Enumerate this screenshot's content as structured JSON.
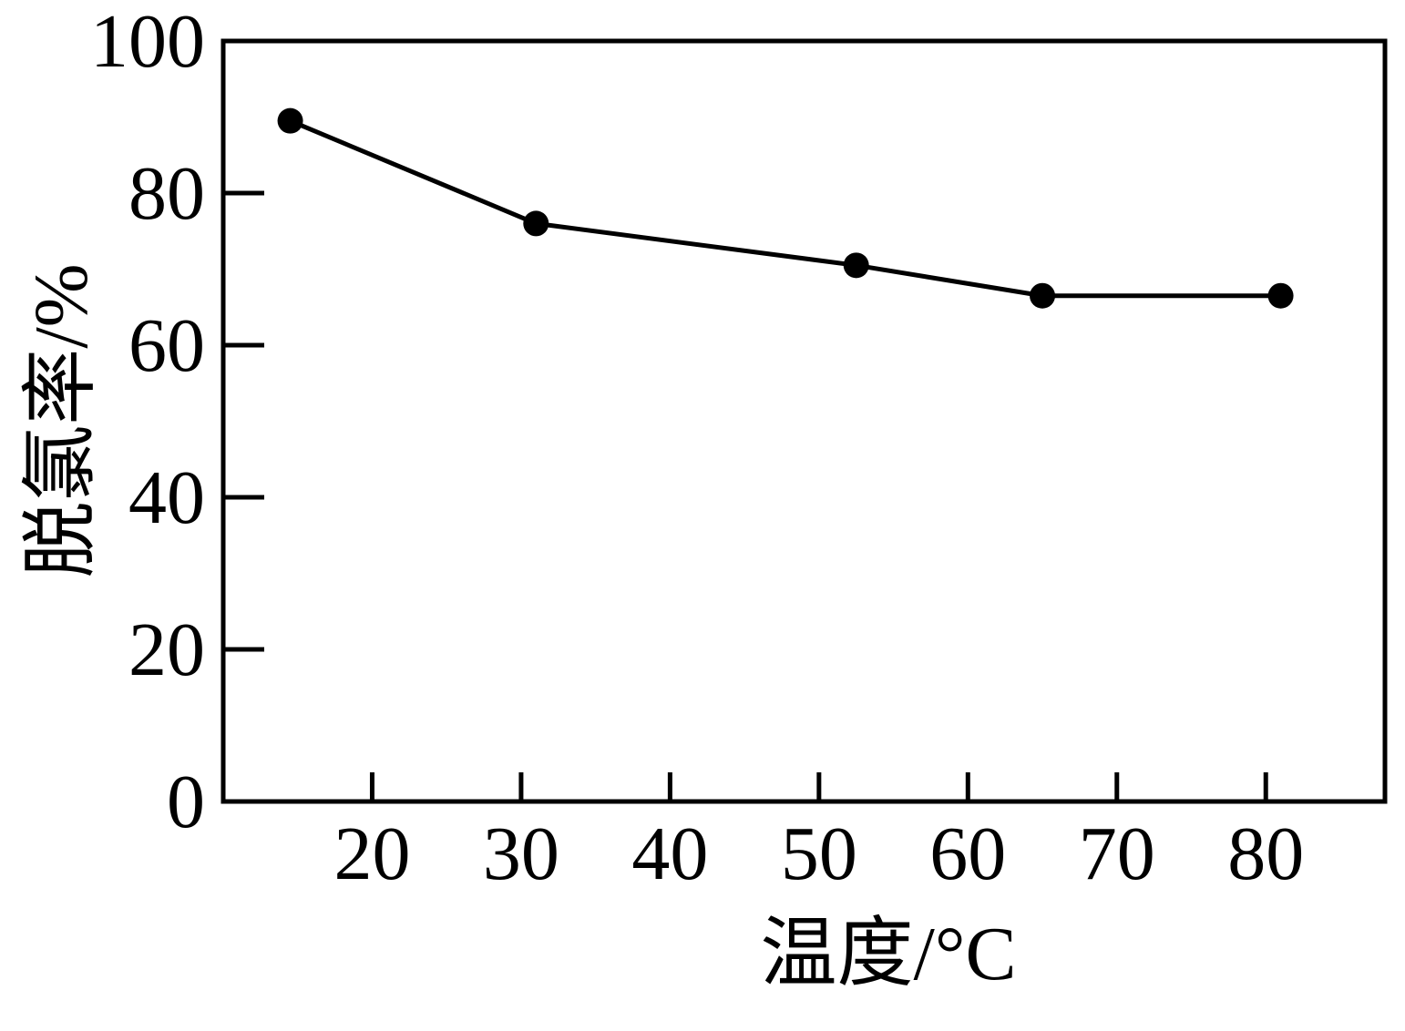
{
  "chart_data": {
    "type": "line",
    "x_label": "温度/°C",
    "y_label": "脱氯率/%",
    "x": [
      14.5,
      31,
      52.5,
      65,
      81
    ],
    "series": [
      {
        "color": "#000000",
        "values": [
          89.5,
          76,
          70.5,
          66.5,
          66.5
        ]
      }
    ],
    "xlim": [
      10,
      88
    ],
    "xticks": [
      20,
      30,
      40,
      50,
      60,
      70,
      80
    ],
    "ylim": [
      0,
      100
    ],
    "yticks": [
      0,
      20,
      40,
      60,
      80,
      100
    ]
  }
}
